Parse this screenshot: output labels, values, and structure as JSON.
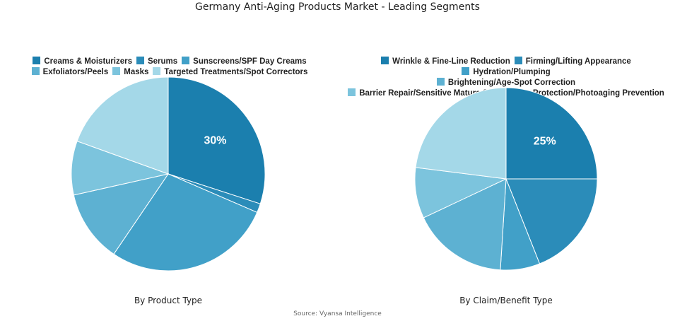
{
  "title": "Germany Anti-Aging Products Market - Leading Segments",
  "source": "Source: Vyansa Intelligence",
  "colors": [
    "#1b7fae",
    "#2b8cb9",
    "#41a0c8",
    "#5db1d2",
    "#7cc4dd",
    "#a4d8e8"
  ],
  "chart_data": [
    {
      "type": "pie",
      "subtitle": "By Product Type",
      "legend_position": "top",
      "categories": [
        "Creams & Moisturizers",
        "Serums",
        "Sunscreens/SPF Day Creams",
        "Exfoliators/Peels",
        "Masks",
        "Targeted Treatments/Spot Correctors"
      ],
      "values": [
        30,
        1.5,
        28,
        12,
        9,
        19.5
      ],
      "data_labels": [
        "30%",
        "",
        "",
        "",
        "",
        ""
      ]
    },
    {
      "type": "pie",
      "subtitle": "By Claim/Benefit Type",
      "legend_position": "top",
      "categories": [
        "Wrinkle & Fine-Line Reduction",
        "Firming/Lifting Appearance",
        "Hydration/Plumping",
        "Brightening/Age-Spot Correction",
        "Barrier Repair/Sensitive Mature Skin",
        "Sun Protection/Photoaging Prevention"
      ],
      "values": [
        25,
        19,
        7,
        17,
        9,
        23
      ],
      "data_labels": [
        "25%",
        "",
        "",
        "",
        "",
        ""
      ]
    }
  ]
}
